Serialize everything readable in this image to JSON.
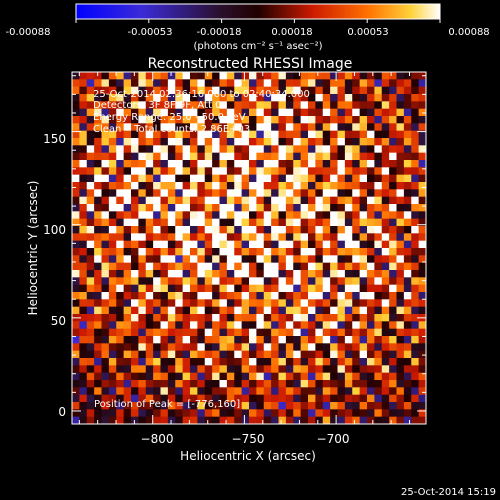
{
  "colorbar": {
    "tick_labels": [
      "-0.00088",
      "-0.00053",
      "-0.00018",
      "0.00018",
      "0.00053",
      "0.00088"
    ],
    "unit_label": "(photons cm⁻² s⁻¹ asec⁻²)",
    "min": -0.00088,
    "max": 0.00088
  },
  "chart_data": {
    "type": "heatmap",
    "title": "Reconstructed RHESSI Image",
    "xlabel": "Heliocentric X (arcsec)",
    "ylabel": "Heliocentric Y (arcsec)",
    "xlim": [
      -844,
      -651
    ],
    "ylim": [
      -7,
      182
    ],
    "x_ticks": [
      -800,
      -750,
      -700
    ],
    "x_tick_labels": [
      "−800",
      "−750",
      "−700"
    ],
    "y_ticks": [
      0,
      50,
      100,
      150
    ],
    "y_tick_labels": [
      "0",
      "50",
      "100",
      "150"
    ],
    "grid": false,
    "peak_position": [
      -776,
      160
    ],
    "annotations": [
      "25-Oct-2014 02:36:16.000 to 02:40:34.000",
      "Detectors: 3F 8F 9F, Att 0",
      "Energy Range: 25.0 - 50.0 keV",
      "Clean    Total counts: 2.86E+03"
    ],
    "peak_label": "Position of Peak = [-776,160]"
  },
  "footer": {
    "timestamp": "25-Oct-2014 15:19"
  },
  "colors": {
    "background": "#000000",
    "foreground": "#ffffff"
  }
}
